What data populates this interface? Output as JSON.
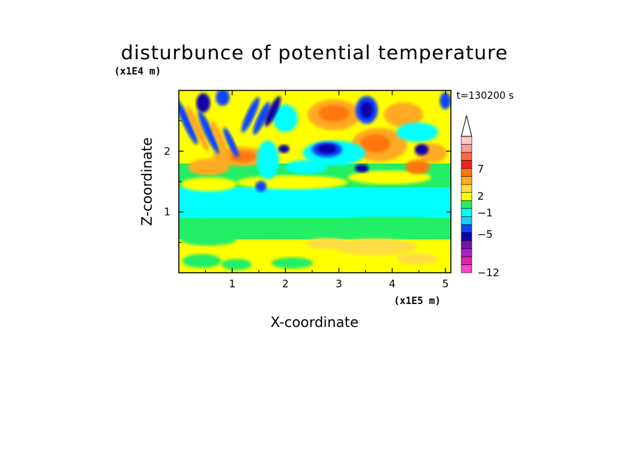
{
  "chart_data": {
    "type": "heatmap",
    "title": "disturbunce of potential temperature",
    "time_label": "t=130200 s",
    "xlabel": "X-coordinate",
    "ylabel": "Z-coordinate",
    "x_unit": "(x1E5 m)",
    "y_unit": "(x1E4 m)",
    "xlim": [
      0,
      5.1
    ],
    "ylim": [
      0,
      3.0
    ],
    "x_ticks": [
      1,
      2,
      3,
      4,
      5
    ],
    "y_ticks": [
      1,
      2
    ],
    "x_tick_labels": [
      "1",
      "2",
      "3",
      "4",
      "5"
    ],
    "y_tick_labels": [
      "1",
      "2"
    ],
    "colorbar": {
      "tick_labels": [
        "7",
        "2",
        "−1",
        "−5",
        "−12"
      ],
      "tick_values": [
        7,
        2,
        -1,
        -5,
        -12
      ],
      "extend": "max",
      "colors": [
        "#ff44cc",
        "#dd22aa",
        "#aa22cc",
        "#7711aa",
        "#1100aa",
        "#1144ff",
        "#22ccff",
        "#00ffff",
        "#22ee66",
        "#ffff00",
        "#ffdd44",
        "#ffaa22",
        "#ff7711",
        "#ee2222",
        "#ff6644",
        "#ff9999",
        "#ffc8c8"
      ]
    },
    "layers": [
      {
        "z_min": 0.0,
        "z_max": 0.55,
        "level": 2,
        "desc": "yellow lower layer"
      },
      {
        "z_min": 0.55,
        "z_max": 0.9,
        "level": 0,
        "desc": "green band"
      },
      {
        "z_min": 0.9,
        "z_max": 1.4,
        "level": -1,
        "desc": "cyan cold band"
      },
      {
        "z_min": 1.4,
        "z_max": 1.8,
        "level": 0,
        "desc": "green/yellow band"
      },
      {
        "z_min": 1.8,
        "z_max": 3.0,
        "level": 2,
        "desc": "wave region with warm and cold anomalies"
      }
    ]
  }
}
